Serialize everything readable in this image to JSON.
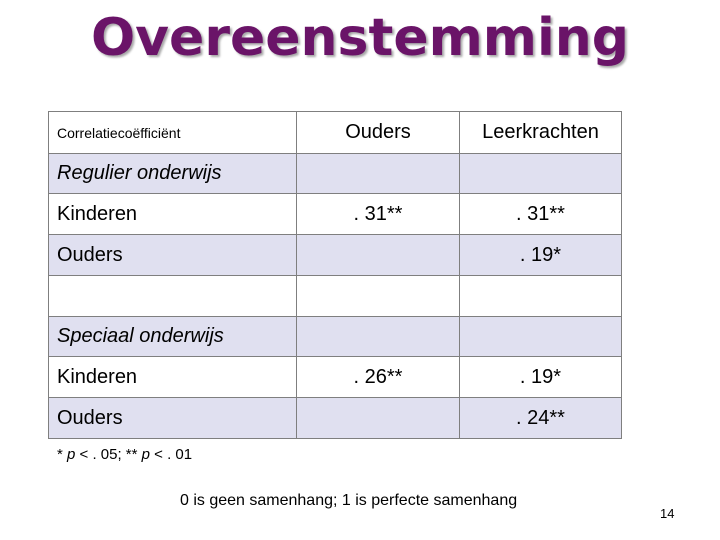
{
  "title": "Overeenstemming",
  "table": {
    "header": {
      "label": "Correlatiecoëfficiënt",
      "col1": "Ouders",
      "col2": "Leerkrachten"
    },
    "regulier": {
      "section": "Regulier onderwijs",
      "rows": [
        {
          "label": "Kinderen",
          "ouders": ". 31**",
          "leerkrachten": ". 31**"
        },
        {
          "label": "Ouders",
          "ouders": "",
          "leerkrachten": ". 19*"
        }
      ]
    },
    "speciaal": {
      "section": "Speciaal onderwijs",
      "rows": [
        {
          "label": "Kinderen",
          "ouders": ". 26**",
          "leerkrachten": ". 19*"
        },
        {
          "label": "Ouders",
          "ouders": "",
          "leerkrachten": ". 24**"
        }
      ]
    }
  },
  "footnote": {
    "part1": "* ",
    "p1": "p",
    "part2": " < . 05; ** ",
    "p2": "p",
    "part3": " < . 01"
  },
  "caption": "0 is geen samenhang; 1 is perfecte samenhang",
  "page_number": "14",
  "colors": {
    "title": "#6a1468",
    "row_shade": "#e0e0f0",
    "border": "#7f7f7f"
  }
}
